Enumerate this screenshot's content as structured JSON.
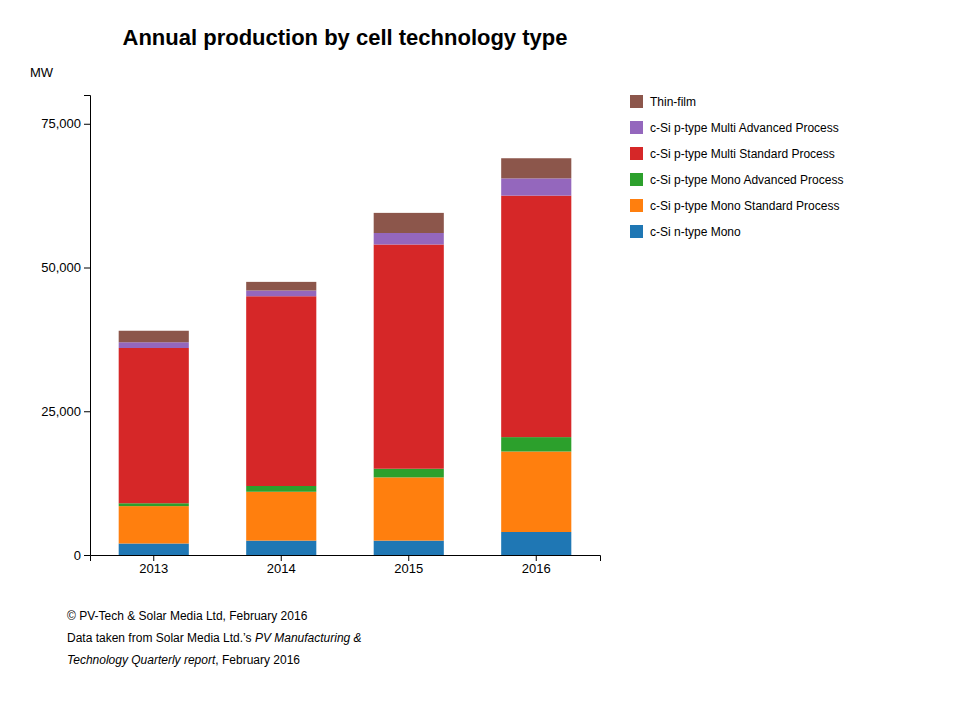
{
  "chart_data": {
    "type": "bar",
    "stacked": true,
    "grid": false,
    "legend": "right",
    "title": "Annual production by cell technology type",
    "y_label": "MW",
    "categories": [
      "2013",
      "2014",
      "2015",
      "2016"
    ],
    "series": [
      {
        "name": "c-Si n-type Mono",
        "values": [
          2000,
          2500,
          2500,
          4000
        ]
      },
      {
        "name": "c-Si p-type Mono Standard Process",
        "values": [
          6500,
          8500,
          11000,
          14000
        ]
      },
      {
        "name": "c-Si p-type Mono Advanced Process",
        "values": [
          500,
          1000,
          1500,
          2500
        ]
      },
      {
        "name": "c-Si p-type Multi Standard Process",
        "values": [
          27000,
          33000,
          39000,
          42000
        ]
      },
      {
        "name": "c-Si p-type Multi Advanced Process",
        "values": [
          1000,
          1000,
          2000,
          3000
        ]
      },
      {
        "name": "Thin-film",
        "values": [
          2000,
          1500,
          3500,
          3500
        ]
      }
    ],
    "ylim": [
      0,
      80000
    ],
    "yticks": [
      0,
      {
        "value": 25000,
        "label": "25,000"
      },
      {
        "value": 50000,
        "label": "50,000"
      },
      {
        "value": 75000,
        "label": "75,000"
      }
    ],
    "annotations": [
      "© PV-Tech & Solar Media Ltd, February 2016",
      "Data taken from Solar Media Ltd.’s ",
      "PV Manufacturing &",
      "Technology Quarterly report",
      ", February 2016"
    ]
  }
}
